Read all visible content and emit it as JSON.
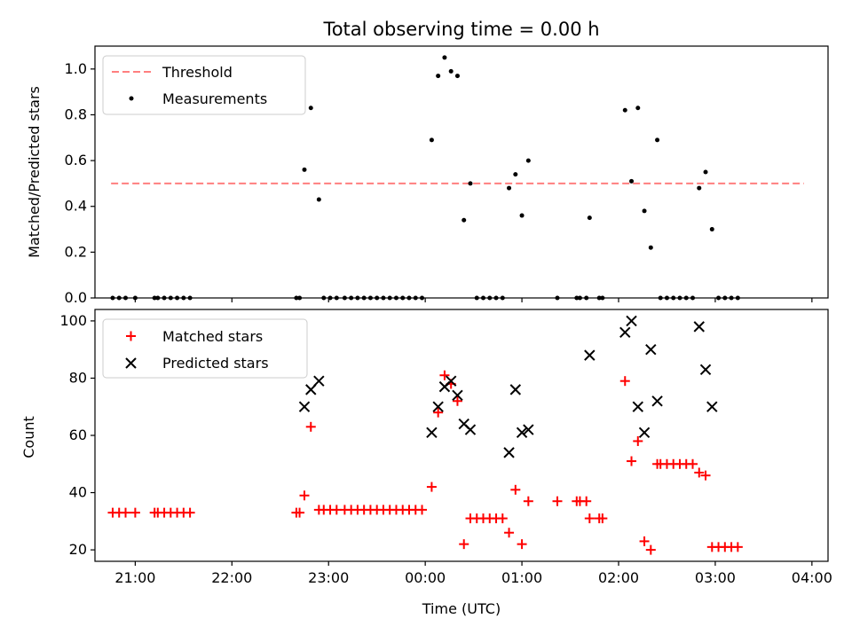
{
  "chart_data": [
    {
      "type": "scatter",
      "title": "Total observing time = 0.00 h",
      "xlabel": "",
      "ylabel": "Matched/Predicted stars",
      "xlim": [
        "20:35",
        "04:10"
      ],
      "ylim": [
        0,
        1.1
      ],
      "yticks": [
        "0.0",
        "0.2",
        "0.4",
        "0.6",
        "0.8",
        "1.0"
      ],
      "legend_position": "top-left",
      "threshold": {
        "name": "Threshold",
        "color": "#ff7f7f",
        "x": [
          "20:45",
          "03:55"
        ],
        "y": 0.5
      },
      "series": [
        {
          "name": "Measurements",
          "color": "#000000",
          "points": [
            [
              "20:46",
              0
            ],
            [
              "20:50",
              0
            ],
            [
              "20:54",
              0
            ],
            [
              "21:00",
              0
            ],
            [
              "21:12",
              0
            ],
            [
              "21:14",
              0
            ],
            [
              "21:18",
              0
            ],
            [
              "21:22",
              0
            ],
            [
              "21:26",
              0
            ],
            [
              "21:30",
              0
            ],
            [
              "21:34",
              0
            ],
            [
              "22:40",
              0
            ],
            [
              "22:42",
              0
            ],
            [
              "22:45",
              0.56
            ],
            [
              "22:49",
              0.83
            ],
            [
              "22:54",
              0.43
            ],
            [
              "22:57",
              0
            ],
            [
              "23:01",
              0
            ],
            [
              "23:05",
              0
            ],
            [
              "23:10",
              0
            ],
            [
              "23:14",
              0
            ],
            [
              "23:18",
              0
            ],
            [
              "23:22",
              0
            ],
            [
              "23:26",
              0
            ],
            [
              "23:30",
              0
            ],
            [
              "23:34",
              0
            ],
            [
              "23:38",
              0
            ],
            [
              "23:42",
              0
            ],
            [
              "23:46",
              0
            ],
            [
              "23:50",
              0
            ],
            [
              "23:54",
              0
            ],
            [
              "23:58",
              0
            ],
            [
              "00:04",
              0.69
            ],
            [
              "00:08",
              0.97
            ],
            [
              "00:12",
              1.05
            ],
            [
              "00:16",
              0.99
            ],
            [
              "00:20",
              0.97
            ],
            [
              "00:24",
              0.34
            ],
            [
              "00:28",
              0.5
            ],
            [
              "00:32",
              0
            ],
            [
              "00:36",
              0
            ],
            [
              "00:40",
              0
            ],
            [
              "00:44",
              0
            ],
            [
              "00:48",
              0
            ],
            [
              "00:52",
              0.48
            ],
            [
              "00:56",
              0.54
            ],
            [
              "01:00",
              0.36
            ],
            [
              "01:04",
              0.6
            ],
            [
              "01:22",
              0
            ],
            [
              "01:34",
              0
            ],
            [
              "01:36",
              0
            ],
            [
              "01:40",
              0
            ],
            [
              "01:48",
              0
            ],
            [
              "01:50",
              0
            ],
            [
              "01:42",
              0.35
            ],
            [
              "02:04",
              0.82
            ],
            [
              "02:08",
              0.51
            ],
            [
              "02:12",
              0.83
            ],
            [
              "02:16",
              0.38
            ],
            [
              "02:20",
              0.22
            ],
            [
              "02:24",
              0.69
            ],
            [
              "02:26",
              0
            ],
            [
              "02:30",
              0
            ],
            [
              "02:34",
              0
            ],
            [
              "02:38",
              0
            ],
            [
              "02:42",
              0
            ],
            [
              "02:46",
              0
            ],
            [
              "02:50",
              0.48
            ],
            [
              "02:54",
              0.55
            ],
            [
              "02:58",
              0.3
            ],
            [
              "03:02",
              0
            ],
            [
              "03:06",
              0
            ],
            [
              "03:10",
              0
            ],
            [
              "03:14",
              0
            ]
          ]
        }
      ]
    },
    {
      "type": "scatter",
      "title": "",
      "xlabel": "Time (UTC)",
      "ylabel": "Count",
      "xlim": [
        "20:35",
        "04:10"
      ],
      "ylim": [
        16,
        104
      ],
      "yticks": [
        "20",
        "40",
        "60",
        "80",
        "100"
      ],
      "xticks": [
        "21:00",
        "22:00",
        "23:00",
        "00:00",
        "01:00",
        "02:00",
        "03:00",
        "04:00"
      ],
      "legend_position": "top-left",
      "series": [
        {
          "name": "Matched stars",
          "marker": "plus",
          "color": "#ff0000",
          "points": [
            [
              "20:46",
              33
            ],
            [
              "20:50",
              33
            ],
            [
              "20:54",
              33
            ],
            [
              "21:00",
              33
            ],
            [
              "21:12",
              33
            ],
            [
              "21:14",
              33
            ],
            [
              "21:18",
              33
            ],
            [
              "21:22",
              33
            ],
            [
              "21:26",
              33
            ],
            [
              "21:30",
              33
            ],
            [
              "21:34",
              33
            ],
            [
              "22:40",
              33
            ],
            [
              "22:42",
              33
            ],
            [
              "22:45",
              39
            ],
            [
              "22:49",
              63
            ],
            [
              "22:54",
              34
            ],
            [
              "22:57",
              34
            ],
            [
              "23:01",
              34
            ],
            [
              "23:05",
              34
            ],
            [
              "23:10",
              34
            ],
            [
              "23:14",
              34
            ],
            [
              "23:18",
              34
            ],
            [
              "23:22",
              34
            ],
            [
              "23:26",
              34
            ],
            [
              "23:30",
              34
            ],
            [
              "23:34",
              34
            ],
            [
              "23:38",
              34
            ],
            [
              "23:42",
              34
            ],
            [
              "23:46",
              34
            ],
            [
              "23:50",
              34
            ],
            [
              "23:54",
              34
            ],
            [
              "23:58",
              34
            ],
            [
              "00:04",
              42
            ],
            [
              "00:08",
              68
            ],
            [
              "00:12",
              81
            ],
            [
              "00:16",
              78
            ],
            [
              "00:20",
              72
            ],
            [
              "00:24",
              22
            ],
            [
              "00:28",
              31
            ],
            [
              "00:32",
              31
            ],
            [
              "00:36",
              31
            ],
            [
              "00:40",
              31
            ],
            [
              "00:44",
              31
            ],
            [
              "00:48",
              31
            ],
            [
              "00:52",
              26
            ],
            [
              "00:56",
              41
            ],
            [
              "01:00",
              22
            ],
            [
              "01:04",
              37
            ],
            [
              "01:22",
              37
            ],
            [
              "01:34",
              37
            ],
            [
              "01:36",
              37
            ],
            [
              "01:40",
              37
            ],
            [
              "01:48",
              31
            ],
            [
              "01:50",
              31
            ],
            [
              "01:42",
              31
            ],
            [
              "02:04",
              79
            ],
            [
              "02:08",
              51
            ],
            [
              "02:12",
              58
            ],
            [
              "02:16",
              23
            ],
            [
              "02:20",
              20
            ],
            [
              "02:24",
              50
            ],
            [
              "02:26",
              50
            ],
            [
              "02:30",
              50
            ],
            [
              "02:34",
              50
            ],
            [
              "02:38",
              50
            ],
            [
              "02:42",
              50
            ],
            [
              "02:46",
              50
            ],
            [
              "02:50",
              47
            ],
            [
              "02:54",
              46
            ],
            [
              "02:58",
              21
            ],
            [
              "03:02",
              21
            ],
            [
              "03:06",
              21
            ],
            [
              "03:10",
              21
            ],
            [
              "03:14",
              21
            ]
          ]
        },
        {
          "name": "Predicted stars",
          "marker": "x",
          "color": "#000000",
          "points": [
            [
              "22:45",
              70
            ],
            [
              "22:49",
              76
            ],
            [
              "22:54",
              79
            ],
            [
              "00:04",
              61
            ],
            [
              "00:08",
              70
            ],
            [
              "00:12",
              77
            ],
            [
              "00:16",
              79
            ],
            [
              "00:20",
              74
            ],
            [
              "00:24",
              64
            ],
            [
              "00:28",
              62
            ],
            [
              "00:52",
              54
            ],
            [
              "00:56",
              76
            ],
            [
              "01:00",
              61
            ],
            [
              "01:04",
              62
            ],
            [
              "01:42",
              88
            ],
            [
              "02:04",
              96
            ],
            [
              "02:08",
              100
            ],
            [
              "02:12",
              70
            ],
            [
              "02:16",
              61
            ],
            [
              "02:20",
              90
            ],
            [
              "02:24",
              72
            ],
            [
              "02:50",
              98
            ],
            [
              "02:54",
              83
            ],
            [
              "02:58",
              70
            ]
          ]
        }
      ]
    }
  ]
}
